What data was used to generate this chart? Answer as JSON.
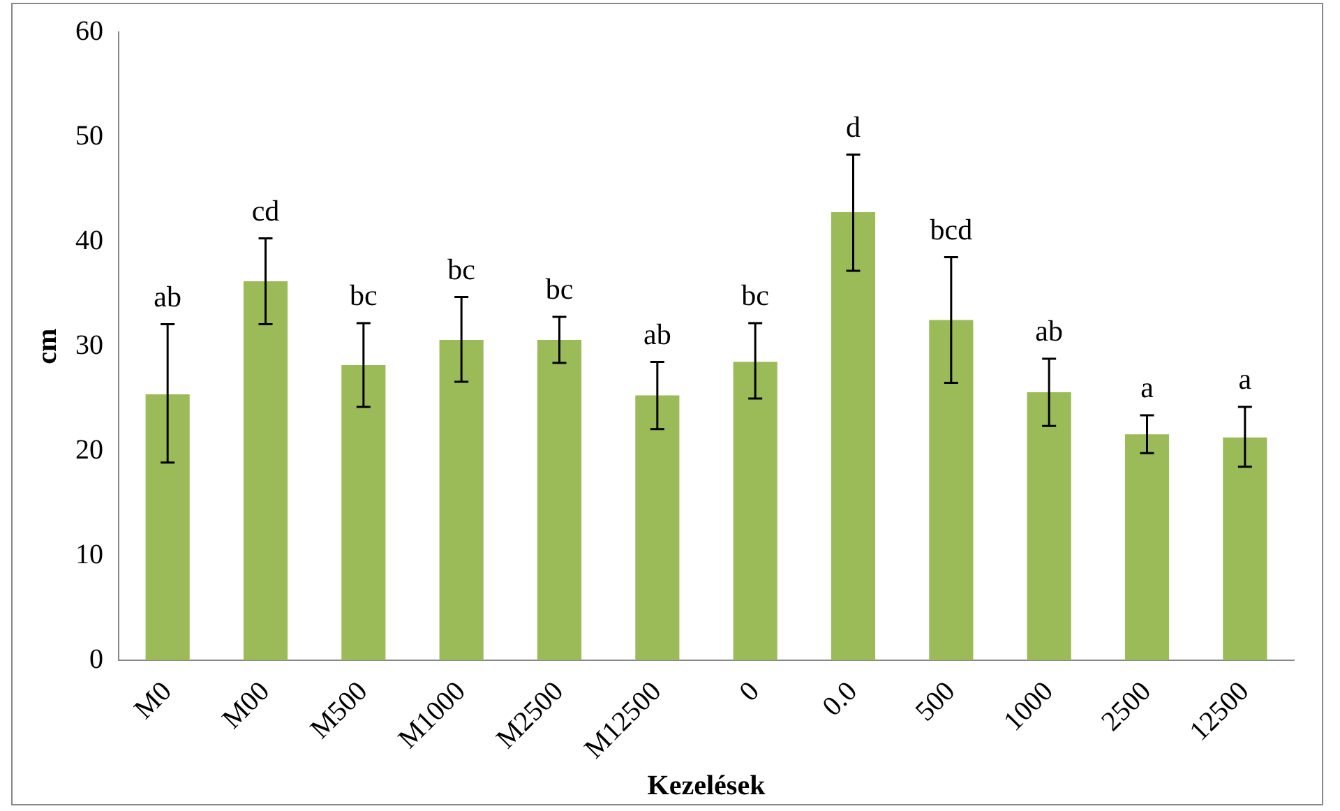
{
  "chart_data": {
    "type": "bar",
    "xlabel": "Kezelések",
    "ylabel": "cm",
    "categories": [
      "M0",
      "M00",
      "M500",
      "M1000",
      "M2500",
      "M12500",
      "0",
      "0.0",
      "500",
      "1000",
      "2500",
      "12500"
    ],
    "values": [
      25.4,
      36.2,
      28.2,
      30.6,
      30.6,
      25.3,
      28.5,
      42.8,
      32.5,
      25.6,
      21.6,
      21.3
    ],
    "errors": [
      [
        18.9,
        32.1
      ],
      [
        32.1,
        40.3
      ],
      [
        24.2,
        32.2
      ],
      [
        26.6,
        34.7
      ],
      [
        28.4,
        32.8
      ],
      [
        22.1,
        28.5
      ],
      [
        25.0,
        32.2
      ],
      [
        37.2,
        48.3
      ],
      [
        26.5,
        38.5
      ],
      [
        22.4,
        28.8
      ],
      [
        19.8,
        23.4
      ],
      [
        18.5,
        24.2
      ]
    ],
    "color": "#9bbb59",
    "ylim": [
      0,
      60
    ],
    "yticks": [
      0,
      10,
      20,
      30,
      40,
      50,
      60
    ],
    "grid": false,
    "legend": false,
    "annotations": [
      {
        "text": "ab",
        "x": "M0",
        "y": 32.1
      },
      {
        "text": "cd",
        "x": "M00",
        "y": 40.3
      },
      {
        "text": "bc",
        "x": "M500",
        "y": 32.2
      },
      {
        "text": "bc",
        "x": "M1000",
        "y": 34.7
      },
      {
        "text": "bc",
        "x": "M2500",
        "y": 32.8
      },
      {
        "text": "ab",
        "x": "M12500",
        "y": 28.5
      },
      {
        "text": "bc",
        "x": "0",
        "y": 32.2
      },
      {
        "text": "d",
        "x": "0.0",
        "y": 48.3
      },
      {
        "text": "bcd",
        "x": "500",
        "y": 38.5
      },
      {
        "text": "ab",
        "x": "1000",
        "y": 28.8
      },
      {
        "text": "a",
        "x": "2500",
        "y": 23.4
      },
      {
        "text": "a",
        "x": "12500",
        "y": 24.2
      }
    ]
  }
}
